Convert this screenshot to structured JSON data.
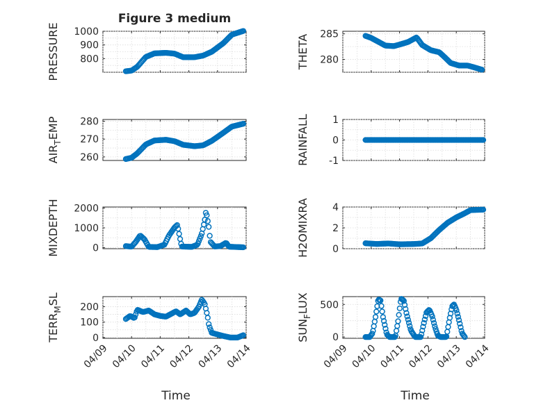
{
  "chart_data": [
    {
      "type": "scatter",
      "id": "pressure",
      "title": "Figure 3 medium",
      "ylabel": "PRESSURE",
      "ylim": [
        700,
        1000
      ],
      "yticks": [
        800,
        900,
        1000
      ],
      "yticklabels": [
        "800",
        "900",
        "1000"
      ],
      "xlim": [
        0,
        5
      ],
      "xticklabels": [],
      "knots": [
        [
          0.8,
          707
        ],
        [
          1.0,
          712
        ],
        [
          1.2,
          740
        ],
        [
          1.5,
          812
        ],
        [
          1.8,
          838
        ],
        [
          2.2,
          842
        ],
        [
          2.5,
          836
        ],
        [
          2.8,
          810
        ],
        [
          3.2,
          810
        ],
        [
          3.5,
          822
        ],
        [
          3.8,
          850
        ],
        [
          4.2,
          912
        ],
        [
          4.5,
          975
        ],
        [
          4.9,
          1002
        ]
      ],
      "series": [
        {
          "name": "PRESSURE"
        }
      ]
    },
    {
      "type": "scatter",
      "id": "theta",
      "ylabel": "THETA",
      "ylim": [
        277.5,
        285.5
      ],
      "yticks": [
        280,
        285
      ],
      "yticklabels": [
        "280",
        "285"
      ],
      "xlim": [
        0,
        5
      ],
      "xticklabels": [],
      "knots": [
        [
          0.8,
          284.6
        ],
        [
          1.0,
          284.2
        ],
        [
          1.2,
          283.6
        ],
        [
          1.5,
          282.7
        ],
        [
          1.8,
          282.6
        ],
        [
          2.0,
          282.9
        ],
        [
          2.3,
          283.4
        ],
        [
          2.6,
          284.3
        ],
        [
          2.8,
          282.8
        ],
        [
          3.1,
          281.8
        ],
        [
          3.4,
          281.4
        ],
        [
          3.6,
          280.4
        ],
        [
          3.8,
          279.3
        ],
        [
          4.1,
          278.8
        ],
        [
          4.4,
          278.8
        ],
        [
          4.6,
          278.5
        ],
        [
          4.9,
          278.0
        ]
      ],
      "series": [
        {
          "name": "THETA"
        }
      ]
    },
    {
      "type": "scatter",
      "id": "airtemp",
      "ylabel_main": "AIR",
      "ylabel_sub": "T",
      "ylabel_tail": "EMP",
      "ylim": [
        258,
        281
      ],
      "yticks": [
        260,
        270,
        280
      ],
      "yticklabels": [
        "260",
        "270",
        "280"
      ],
      "xlim": [
        0,
        5
      ],
      "xticklabels": [],
      "knots": [
        [
          0.8,
          258.8
        ],
        [
          1.0,
          259.5
        ],
        [
          1.2,
          262.0
        ],
        [
          1.5,
          267.0
        ],
        [
          1.8,
          269.2
        ],
        [
          2.2,
          269.6
        ],
        [
          2.5,
          268.8
        ],
        [
          2.8,
          266.8
        ],
        [
          3.2,
          266.0
        ],
        [
          3.5,
          266.5
        ],
        [
          3.8,
          269.0
        ],
        [
          4.2,
          273.5
        ],
        [
          4.5,
          277.0
        ],
        [
          4.9,
          278.6
        ]
      ],
      "series": [
        {
          "name": "AIR_TEMP"
        }
      ]
    },
    {
      "type": "scatter",
      "id": "rainfall",
      "ylabel": "RAINFALL",
      "ylim": [
        -1,
        1
      ],
      "yticks": [
        -1,
        0,
        1
      ],
      "yticklabels": [
        "-1",
        "0",
        "1"
      ],
      "xlim": [
        0,
        5
      ],
      "xticklabels": [],
      "knots": [
        [
          0.8,
          0
        ],
        [
          4.95,
          0
        ]
      ],
      "series": [
        {
          "name": "RAINFALL"
        }
      ]
    },
    {
      "type": "scatter",
      "id": "mixdepth",
      "ylabel": "MIXDEPTH",
      "ylim": [
        -50,
        2050
      ],
      "yticks": [
        0,
        1000,
        2000
      ],
      "yticklabels": [
        "0",
        "1000",
        "2000"
      ],
      "xlim": [
        0,
        5
      ],
      "xticklabels": [],
      "knots": [
        [
          0.8,
          80
        ],
        [
          1.0,
          50
        ],
        [
          1.15,
          300
        ],
        [
          1.3,
          620
        ],
        [
          1.45,
          420
        ],
        [
          1.6,
          40
        ],
        [
          1.9,
          30
        ],
        [
          2.15,
          150
        ],
        [
          2.3,
          600
        ],
        [
          2.5,
          1020
        ],
        [
          2.6,
          1150
        ],
        [
          2.7,
          400
        ],
        [
          2.75,
          60
        ],
        [
          3.1,
          40
        ],
        [
          3.3,
          150
        ],
        [
          3.45,
          700
        ],
        [
          3.55,
          1350
        ],
        [
          3.6,
          1850
        ],
        [
          3.7,
          1000
        ],
        [
          3.75,
          300
        ],
        [
          3.9,
          60
        ],
        [
          4.1,
          80
        ],
        [
          4.3,
          250
        ],
        [
          4.4,
          50
        ],
        [
          4.9,
          20
        ]
      ],
      "series": [
        {
          "name": "MIXDEPTH"
        }
      ]
    },
    {
      "type": "scatter",
      "id": "h2omixra",
      "ylabel": "H2OMIXRA",
      "ylim": [
        0,
        4
      ],
      "yticks": [
        0,
        2,
        4
      ],
      "yticklabels": [
        "0",
        "2",
        "4"
      ],
      "xlim": [
        0,
        5
      ],
      "xticklabels": [],
      "knots": [
        [
          0.8,
          0.52
        ],
        [
          1.2,
          0.45
        ],
        [
          1.6,
          0.5
        ],
        [
          2.0,
          0.42
        ],
        [
          2.5,
          0.45
        ],
        [
          2.8,
          0.5
        ],
        [
          3.1,
          1.0
        ],
        [
          3.4,
          1.8
        ],
        [
          3.7,
          2.5
        ],
        [
          4.0,
          3.0
        ],
        [
          4.3,
          3.4
        ],
        [
          4.5,
          3.7
        ],
        [
          4.95,
          3.75
        ]
      ],
      "series": [
        {
          "name": "H2OMIXRA"
        }
      ]
    },
    {
      "type": "scatter",
      "id": "terrmsl",
      "ylabel_main": "TERR",
      "ylabel_sub": "M",
      "ylabel_tail": "SL",
      "ylim": [
        -5,
        265
      ],
      "yticks": [
        0,
        100,
        200
      ],
      "yticklabels": [
        "0",
        "100",
        "200"
      ],
      "xlim": [
        0,
        5
      ],
      "xticklabels": [
        "04/09",
        "04/10",
        "04/11",
        "04/12",
        "04/13",
        "04/14"
      ],
      "xlabel": "Time",
      "knots": [
        [
          0.8,
          120
        ],
        [
          0.95,
          140
        ],
        [
          1.1,
          125
        ],
        [
          1.2,
          180
        ],
        [
          1.4,
          165
        ],
        [
          1.6,
          175
        ],
        [
          1.8,
          150
        ],
        [
          2.0,
          140
        ],
        [
          2.2,
          135
        ],
        [
          2.35,
          150
        ],
        [
          2.55,
          170
        ],
        [
          2.7,
          150
        ],
        [
          2.9,
          175
        ],
        [
          3.05,
          150
        ],
        [
          3.2,
          160
        ],
        [
          3.35,
          200
        ],
        [
          3.45,
          245
        ],
        [
          3.55,
          220
        ],
        [
          3.65,
          140
        ],
        [
          3.7,
          80
        ],
        [
          3.8,
          30
        ],
        [
          4.0,
          20
        ],
        [
          4.2,
          10
        ],
        [
          4.45,
          0
        ],
        [
          4.7,
          0
        ],
        [
          4.9,
          15
        ]
      ],
      "series": [
        {
          "name": "TERR_MSL"
        }
      ]
    },
    {
      "type": "scatter",
      "id": "sunflux",
      "ylabel_main": "SUN",
      "ylabel_sub": "F",
      "ylabel_tail": "LUX",
      "ylim": [
        -20,
        620
      ],
      "yticks": [
        0,
        500
      ],
      "yticklabels": [
        "0",
        "500"
      ],
      "xlim": [
        0,
        5
      ],
      "xticklabels": [
        "04/09",
        "04/10",
        "04/11",
        "04/12",
        "04/13",
        "04/14"
      ],
      "xlabel": "Time",
      "knots": [
        [
          0.8,
          0
        ],
        [
          0.95,
          0
        ],
        [
          1.05,
          60
        ],
        [
          1.15,
          300
        ],
        [
          1.25,
          580
        ],
        [
          1.33,
          560
        ],
        [
          1.42,
          300
        ],
        [
          1.55,
          40
        ],
        [
          1.65,
          0
        ],
        [
          1.85,
          0
        ],
        [
          1.95,
          250
        ],
        [
          2.05,
          590
        ],
        [
          2.15,
          560
        ],
        [
          2.25,
          350
        ],
        [
          2.4,
          100
        ],
        [
          2.55,
          0
        ],
        [
          2.75,
          0
        ],
        [
          2.85,
          200
        ],
        [
          2.95,
          380
        ],
        [
          3.05,
          420
        ],
        [
          3.15,
          320
        ],
        [
          3.25,
          150
        ],
        [
          3.35,
          20
        ],
        [
          3.45,
          0
        ],
        [
          3.65,
          0
        ],
        [
          3.75,
          250
        ],
        [
          3.85,
          470
        ],
        [
          3.92,
          500
        ],
        [
          4.0,
          420
        ],
        [
          4.1,
          250
        ],
        [
          4.2,
          60
        ],
        [
          4.3,
          0
        ]
      ],
      "series": [
        {
          "name": "SUN_FLUX"
        }
      ]
    }
  ]
}
